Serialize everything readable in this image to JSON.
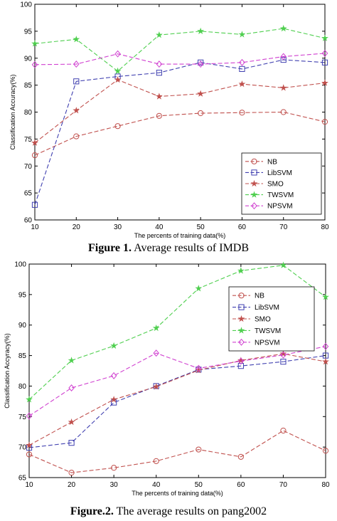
{
  "captions": [
    {
      "label": "Figure 1.",
      "text": " Average results of IMDB"
    },
    {
      "label": "Figure.2.",
      "text": " The average results on pang2002"
    }
  ],
  "chart_data": [
    {
      "type": "line",
      "xlabel": "The percents of training data(%)",
      "ylabel": "Classification Accuracy(%)",
      "x": [
        10,
        20,
        30,
        40,
        50,
        60,
        70,
        80
      ],
      "xticks": [
        10,
        20,
        30,
        40,
        50,
        60,
        70,
        80
      ],
      "yticks": [
        60,
        65,
        70,
        75,
        80,
        85,
        90,
        95,
        100
      ],
      "ylim": [
        60,
        100
      ],
      "grid": false,
      "legend_position": "bottom-right",
      "series": [
        {
          "name": "NB",
          "color": "#c0504d",
          "marker": "circle",
          "dash": "dashed",
          "values": [
            72.0,
            75.5,
            77.4,
            79.3,
            79.8,
            79.9,
            80.0,
            78.2
          ]
        },
        {
          "name": "LibSVM",
          "color": "#4040b0",
          "marker": "square",
          "dash": "dashed",
          "values": [
            62.8,
            85.7,
            86.6,
            87.3,
            89.2,
            88.0,
            89.7,
            89.2
          ]
        },
        {
          "name": "SMO",
          "color": "#c0504d",
          "marker": "star",
          "dash": "dashed",
          "values": [
            74.3,
            80.3,
            86.0,
            82.9,
            83.4,
            85.2,
            84.5,
            85.4
          ]
        },
        {
          "name": "TWSVM",
          "color": "#4fcf4f",
          "marker": "star",
          "dash": "dashed",
          "values": [
            92.7,
            93.5,
            87.6,
            94.3,
            95.0,
            94.4,
            95.5,
            93.7
          ]
        },
        {
          "name": "NPSVM",
          "color": "#d040d0",
          "marker": "diamond",
          "dash": "dashed",
          "values": [
            88.8,
            88.9,
            90.8,
            88.9,
            88.9,
            89.2,
            90.3,
            90.9
          ]
        }
      ]
    },
    {
      "type": "line",
      "xlabel": "The percents of training data(%)",
      "ylabel": "Classification Accyracy(%)",
      "x": [
        10,
        20,
        30,
        40,
        50,
        60,
        70,
        80
      ],
      "xticks": [
        10,
        20,
        30,
        40,
        50,
        60,
        70,
        80
      ],
      "yticks": [
        65,
        70,
        75,
        80,
        85,
        90,
        95,
        100
      ],
      "ylim": [
        65,
        100
      ],
      "grid": false,
      "legend_position": "top-right",
      "series": [
        {
          "name": "NB",
          "color": "#c0504d",
          "marker": "circle",
          "dash": "dashed",
          "values": [
            68.8,
            65.8,
            66.6,
            67.7,
            69.6,
            68.4,
            72.7,
            69.4
          ]
        },
        {
          "name": "LibSVM",
          "color": "#4040b0",
          "marker": "square",
          "dash": "dashed",
          "values": [
            69.9,
            70.7,
            77.3,
            80.0,
            82.7,
            83.3,
            84.0,
            85.0
          ]
        },
        {
          "name": "SMO",
          "color": "#c0504d",
          "marker": "star",
          "dash": "dashed",
          "values": [
            70.3,
            74.1,
            77.8,
            79.9,
            82.6,
            84.2,
            85.3,
            84.0
          ]
        },
        {
          "name": "TWSVM",
          "color": "#4fcf4f",
          "marker": "star",
          "dash": "dashed",
          "values": [
            77.8,
            84.2,
            86.6,
            89.5,
            96.0,
            98.9,
            99.8,
            94.6
          ]
        },
        {
          "name": "NPSVM",
          "color": "#d040d0",
          "marker": "diamond",
          "dash": "dashed",
          "values": [
            75.1,
            79.7,
            81.7,
            85.4,
            82.9,
            84.1,
            85.1,
            86.5
          ]
        }
      ]
    }
  ]
}
